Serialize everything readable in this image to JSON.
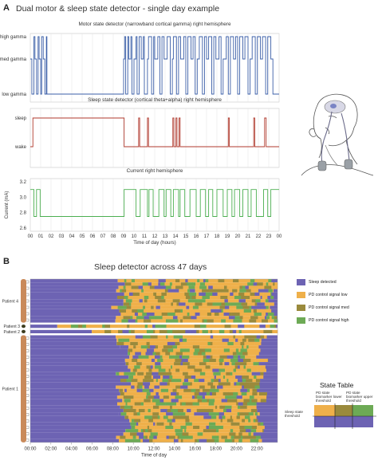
{
  "panel_a": {
    "letter": "A",
    "title": "Dual motor & sleep state detector - single day example",
    "x_ticks": [
      "00",
      "01",
      "02",
      "03",
      "04",
      "05",
      "06",
      "07",
      "08",
      "09",
      "10",
      "11",
      "12",
      "13",
      "14",
      "15",
      "16",
      "17",
      "18",
      "19",
      "20",
      "21",
      "22",
      "23",
      "00"
    ],
    "xlabel": "Time of day (hours)"
  },
  "panel_b": {
    "letter": "B",
    "title": "Sleep detector across 47 days",
    "x_ticks": [
      "00:00",
      "02:00",
      "04:00",
      "06:00",
      "08:00",
      "10:00",
      "12:00",
      "14:00",
      "16:00",
      "18:00",
      "20:00",
      "22:00"
    ],
    "xlabel": "Time of day",
    "patients": [
      "Patient 4",
      "Patient 3",
      "Patient 2",
      "Patient 1"
    ],
    "legend": [
      {
        "label": "Sleep detected",
        "color": "#6d63b3"
      },
      {
        "label": "PD control signal low",
        "color": "#efb04a"
      },
      {
        "label": "PD control signal med",
        "color": "#9a8a3c"
      },
      {
        "label": "PD control signal high",
        "color": "#6daa55"
      }
    ],
    "state_table": {
      "title": "State Table",
      "lower_label": "PD state biomarker lower threshold",
      "upper_label": "PD state biomarker upper threshold",
      "sleep_label": "Sleep state threshold"
    }
  },
  "chart_data": [
    {
      "type": "line",
      "title": "Motor state detector (narrowband cortical gamma) right hemisphere",
      "xlabel": "",
      "ylabel": "",
      "y_categories": [
        "low gamma",
        "med gamma",
        "high gamma"
      ],
      "xlim": [
        0,
        24
      ],
      "color": "#3b5fa8",
      "segments": [
        [
          0,
          1
        ],
        [
          0.15,
          0
        ],
        [
          0.35,
          2
        ],
        [
          0.45,
          1
        ],
        [
          0.6,
          0
        ],
        [
          0.75,
          2
        ],
        [
          0.85,
          1
        ],
        [
          1.0,
          0
        ],
        [
          1.1,
          2
        ],
        [
          1.25,
          1
        ],
        [
          1.4,
          0
        ],
        [
          1.55,
          2
        ],
        [
          1.6,
          0
        ],
        [
          9.0,
          1
        ],
        [
          9.1,
          2
        ],
        [
          9.2,
          0
        ],
        [
          9.4,
          2
        ],
        [
          9.5,
          1
        ],
        [
          9.7,
          2
        ],
        [
          9.8,
          0
        ],
        [
          10.0,
          1
        ],
        [
          10.2,
          2
        ],
        [
          10.3,
          0
        ],
        [
          10.5,
          2
        ],
        [
          10.7,
          1
        ],
        [
          10.9,
          2
        ],
        [
          11.0,
          0
        ],
        [
          11.3,
          1
        ],
        [
          11.4,
          2
        ],
        [
          11.7,
          0
        ],
        [
          11.9,
          2
        ],
        [
          12.0,
          1
        ],
        [
          12.3,
          2
        ],
        [
          12.5,
          0
        ],
        [
          12.7,
          2
        ],
        [
          12.9,
          1
        ],
        [
          13.2,
          2
        ],
        [
          13.5,
          0
        ],
        [
          13.7,
          1
        ],
        [
          13.8,
          2
        ],
        [
          14.1,
          0
        ],
        [
          14.3,
          2
        ],
        [
          14.5,
          1
        ],
        [
          14.8,
          2
        ],
        [
          15.0,
          0
        ],
        [
          15.2,
          2
        ],
        [
          15.5,
          1
        ],
        [
          15.7,
          2
        ],
        [
          15.9,
          0
        ],
        [
          16.1,
          1
        ],
        [
          16.3,
          2
        ],
        [
          16.6,
          0
        ],
        [
          16.8,
          2
        ],
        [
          17.0,
          1
        ],
        [
          17.2,
          2
        ],
        [
          17.5,
          0
        ],
        [
          17.7,
          2
        ],
        [
          17.9,
          1
        ],
        [
          18.2,
          2
        ],
        [
          18.4,
          0
        ],
        [
          18.6,
          1
        ],
        [
          18.9,
          2
        ],
        [
          19.1,
          0
        ],
        [
          19.3,
          2
        ],
        [
          19.6,
          1
        ],
        [
          19.8,
          2
        ],
        [
          20.0,
          0
        ],
        [
          20.2,
          2
        ],
        [
          20.5,
          1
        ],
        [
          20.7,
          2
        ],
        [
          21.0,
          0
        ],
        [
          21.2,
          1
        ],
        [
          21.4,
          2
        ],
        [
          21.7,
          0
        ],
        [
          21.9,
          2
        ],
        [
          22.2,
          1
        ],
        [
          22.4,
          2
        ],
        [
          22.7,
          0
        ],
        [
          22.9,
          2
        ],
        [
          23.2,
          1
        ],
        [
          23.4,
          0
        ],
        [
          24,
          0
        ]
      ]
    },
    {
      "type": "line",
      "title": "Sleep state detector (cortical theta+alpha) right hemisphere",
      "xlabel": "",
      "ylabel": "",
      "y_categories": [
        "wake",
        "sleep"
      ],
      "xlim": [
        0,
        24
      ],
      "color": "#b03a2e",
      "segments": [
        [
          0,
          0
        ],
        [
          0.25,
          1
        ],
        [
          9.05,
          0
        ],
        [
          10.45,
          1
        ],
        [
          10.55,
          0
        ],
        [
          11.3,
          1
        ],
        [
          11.4,
          0
        ],
        [
          13.75,
          1
        ],
        [
          13.85,
          0
        ],
        [
          14.05,
          1
        ],
        [
          14.15,
          0
        ],
        [
          14.35,
          1
        ],
        [
          14.45,
          0
        ],
        [
          19.1,
          1
        ],
        [
          19.2,
          0
        ],
        [
          21.55,
          1
        ],
        [
          21.65,
          0
        ],
        [
          22.6,
          1
        ],
        [
          22.75,
          0
        ],
        [
          24,
          0
        ]
      ]
    },
    {
      "type": "line",
      "title": "Current right hemisphere",
      "xlabel": "Time of day (hours)",
      "ylabel": "Current (mA)",
      "ylim": [
        2.6,
        3.2
      ],
      "y_ticks": [
        2.6,
        2.8,
        3.0,
        3.2
      ],
      "xlim": [
        0,
        24
      ],
      "color": "#4caf50",
      "segments": [
        [
          0,
          3.1
        ],
        [
          0.35,
          2.75
        ],
        [
          0.6,
          3.1
        ],
        [
          0.95,
          2.75
        ],
        [
          9.0,
          2.75
        ],
        [
          9.05,
          3.1
        ],
        [
          10.2,
          2.75
        ],
        [
          10.6,
          3.1
        ],
        [
          11.3,
          2.75
        ],
        [
          11.45,
          3.1
        ],
        [
          11.85,
          2.75
        ],
        [
          12.4,
          3.1
        ],
        [
          12.9,
          2.75
        ],
        [
          13.1,
          3.1
        ],
        [
          13.55,
          2.75
        ],
        [
          13.8,
          3.1
        ],
        [
          14.3,
          2.75
        ],
        [
          14.45,
          3.1
        ],
        [
          14.9,
          2.75
        ],
        [
          15.4,
          3.1
        ],
        [
          16.0,
          2.75
        ],
        [
          16.4,
          3.1
        ],
        [
          16.9,
          2.75
        ],
        [
          17.2,
          3.1
        ],
        [
          17.6,
          2.75
        ],
        [
          18.0,
          3.1
        ],
        [
          18.6,
          2.75
        ],
        [
          19.0,
          3.1
        ],
        [
          19.45,
          2.75
        ],
        [
          19.7,
          3.1
        ],
        [
          20.2,
          2.75
        ],
        [
          20.5,
          3.1
        ],
        [
          21.0,
          2.75
        ],
        [
          21.3,
          3.1
        ],
        [
          21.8,
          2.75
        ],
        [
          22.5,
          3.1
        ],
        [
          22.9,
          2.75
        ],
        [
          23.2,
          3.1
        ],
        [
          24,
          3.1
        ]
      ]
    },
    {
      "type": "heatmap",
      "title": "Sleep detector across 47 days",
      "xlabel": "Time of day",
      "ylabel": "",
      "xlim": [
        0,
        24
      ],
      "days": 47,
      "rows": [
        {
          "group": "Patient 4",
          "days": 13,
          "sleep_start": 0,
          "sleep_end": 8.5,
          "late_sleep": 23.6
        },
        {
          "group": "Patient 3",
          "days": 1,
          "sleep_start": 0,
          "sleep_end": 3.2,
          "late_sleep": 24
        },
        {
          "group": "Patient 2",
          "days": 1,
          "sleep_start": 0,
          "sleep_end": 6.0,
          "late_sleep": 24
        },
        {
          "group": "Patient 1",
          "days": 32,
          "sleep_start": 0,
          "sleep_end": 9.0,
          "late_sleep": 22.5
        }
      ],
      "states": [
        "Sleep detected",
        "PD control signal low",
        "PD control signal med",
        "PD control signal high"
      ]
    }
  ]
}
